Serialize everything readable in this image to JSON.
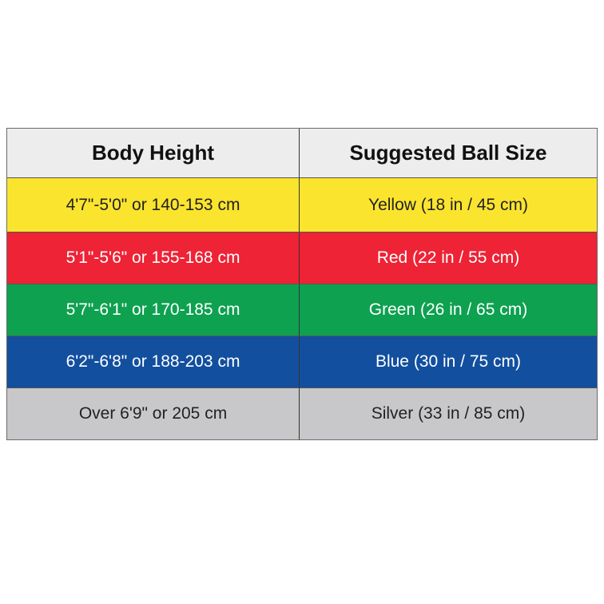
{
  "table": {
    "headers": [
      "Body Height",
      "Suggested Ball Size"
    ],
    "rows": [
      {
        "height": "4'7\"-5'0\" or 140-153 cm",
        "ball": "Yellow (18 in / 45 cm)",
        "bg": "#fbe42e",
        "fg": "#222222"
      },
      {
        "height": "5'1\"-5'6\" or 155-168 cm",
        "ball": "Red (22 in / 55 cm)",
        "bg": "#ee2335",
        "fg": "#ffffff"
      },
      {
        "height": "5'7\"-6'1\" or 170-185 cm",
        "ball": "Green (26 in / 65 cm)",
        "bg": "#0ea150",
        "fg": "#ffffff"
      },
      {
        "height": "6'2\"-6'8\" or 188-203 cm",
        "ball": "Blue (30 in / 75 cm)",
        "bg": "#124f9f",
        "fg": "#ffffff"
      },
      {
        "height": "Over 6'9\" or 205 cm",
        "ball": "Silver (33 in / 85 cm)",
        "bg": "#c8c8ca",
        "fg": "#222222"
      }
    ]
  }
}
